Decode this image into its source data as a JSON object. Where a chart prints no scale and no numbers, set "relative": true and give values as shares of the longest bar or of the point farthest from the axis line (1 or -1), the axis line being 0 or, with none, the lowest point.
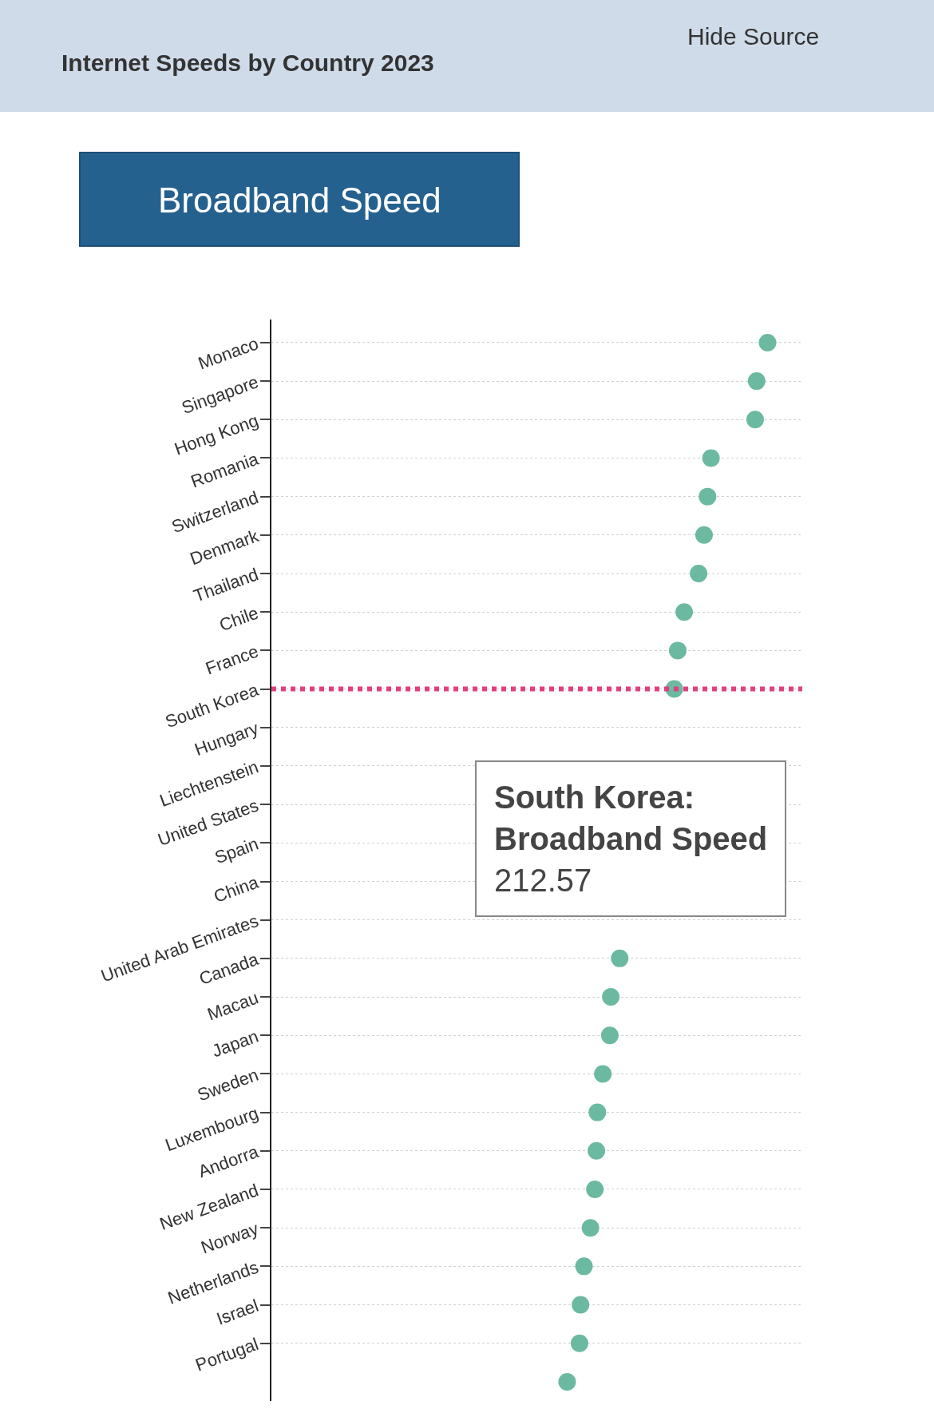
{
  "chart_data": {
    "type": "scatter",
    "title": "Internet Speeds by Country 2023",
    "subtitle": "Broadband Speed",
    "categories": [
      "Monaco",
      "Singapore",
      "Hong Kong",
      "Romania",
      "Switzerland",
      "Denmark",
      "Thailand",
      "Chile",
      "France",
      "South Korea",
      "Hungary",
      "Liechtenstein",
      "United States",
      "Spain",
      "China",
      "United Arab Emirates",
      "Canada",
      "Macau",
      "Japan",
      "Sweden",
      "Luxembourg",
      "Andorra",
      "New Zealand",
      "Norway",
      "Netherlands",
      "Israel",
      "Portugal",
      null
    ],
    "series": [
      {
        "color": "#6cb9a1",
        "values": [
          1,
          0.978,
          0.975,
          0.886,
          0.879,
          0.872,
          0.861,
          0.832,
          0.819,
          0.812,
          null,
          null,
          null,
          null,
          null,
          null,
          0.702,
          0.684,
          0.682,
          0.668,
          0.657,
          0.655,
          0.652,
          0.643,
          0.63,
          0.623,
          0.621,
          0.596
        ]
      }
    ],
    "relative": true,
    "orientation": "horizontal",
    "grid": "y",
    "marker": "circle",
    "legend": false,
    "ref_lines": [
      {
        "axis": "y",
        "value": "South Korea",
        "color": "#e0407f",
        "line_style": "dotted"
      }
    ],
    "annotations": [
      "Hide Source",
      "South Korea:\nBroadband Speed\n212.57"
    ]
  }
}
